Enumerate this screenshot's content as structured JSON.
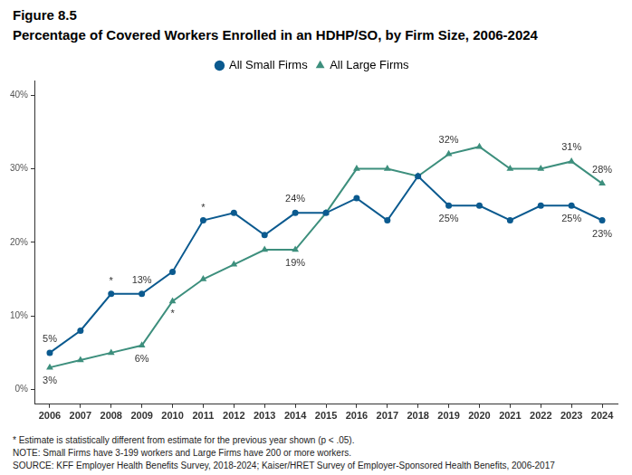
{
  "chart_data": {
    "type": "line",
    "title": "Figure 8.5",
    "subtitle": "Percentage of Covered Workers Enrolled in an HDHP/SO, by Firm Size, 2006-2024",
    "categories": [
      "2006",
      "2007",
      "2008",
      "2009",
      "2010",
      "2011",
      "2012",
      "2013",
      "2014",
      "2015",
      "2016",
      "2017",
      "2018",
      "2019",
      "2020",
      "2021",
      "2022",
      "2023",
      "2024"
    ],
    "series": [
      {
        "name": "All Small Firms",
        "color": "#0b5a8f",
        "marker": "circle",
        "values": [
          5,
          8,
          13,
          13,
          16,
          23,
          24,
          21,
          24,
          24,
          26,
          23,
          29,
          25,
          25,
          23,
          25,
          25,
          23
        ],
        "value_labels": [
          "5%",
          null,
          null,
          "13%",
          null,
          null,
          null,
          null,
          "24%",
          null,
          null,
          null,
          null,
          "25%",
          null,
          null,
          null,
          "25%",
          "23%"
        ]
      },
      {
        "name": "All Large Firms",
        "color": "#3d8f7d",
        "marker": "triangle",
        "values": [
          3,
          4,
          5,
          6,
          12,
          15,
          17,
          19,
          19,
          24,
          30,
          30,
          29,
          32,
          33,
          30,
          30,
          31,
          28
        ],
        "value_labels": [
          "3%",
          null,
          null,
          "6%",
          null,
          null,
          null,
          null,
          "19%",
          null,
          null,
          null,
          null,
          "32%",
          null,
          null,
          null,
          "31%",
          "28%"
        ]
      }
    ],
    "annotations": [
      {
        "text": "*",
        "series": "All Small Firms",
        "x": "2008"
      },
      {
        "text": "*",
        "series": "All Small Firms",
        "x": "2011"
      },
      {
        "text": "*",
        "series": "All Large Firms",
        "x": "2010"
      }
    ],
    "notes": [
      "* Estimate is statistically different from estimate for the previous year shown (p < .05).",
      "NOTE: Small Firms have 3-199 workers and Large Firms have 200 or more workers.",
      "SOURCE: KFF Employer Health Benefits Survey, 2018-2024; Kaiser/HRET Survey of Employer-Sponsored Health Benefits, 2006-2017"
    ],
    "ylim": [
      -2,
      42
    ],
    "yticks": [
      {
        "value": 0,
        "label": "0%"
      },
      {
        "value": 10,
        "label": "10%"
      },
      {
        "value": 20,
        "label": "20%"
      },
      {
        "value": 30,
        "label": "30%"
      },
      {
        "value": 40,
        "label": "40%"
      }
    ],
    "grid": false,
    "legend": "top",
    "data_labels": true
  }
}
